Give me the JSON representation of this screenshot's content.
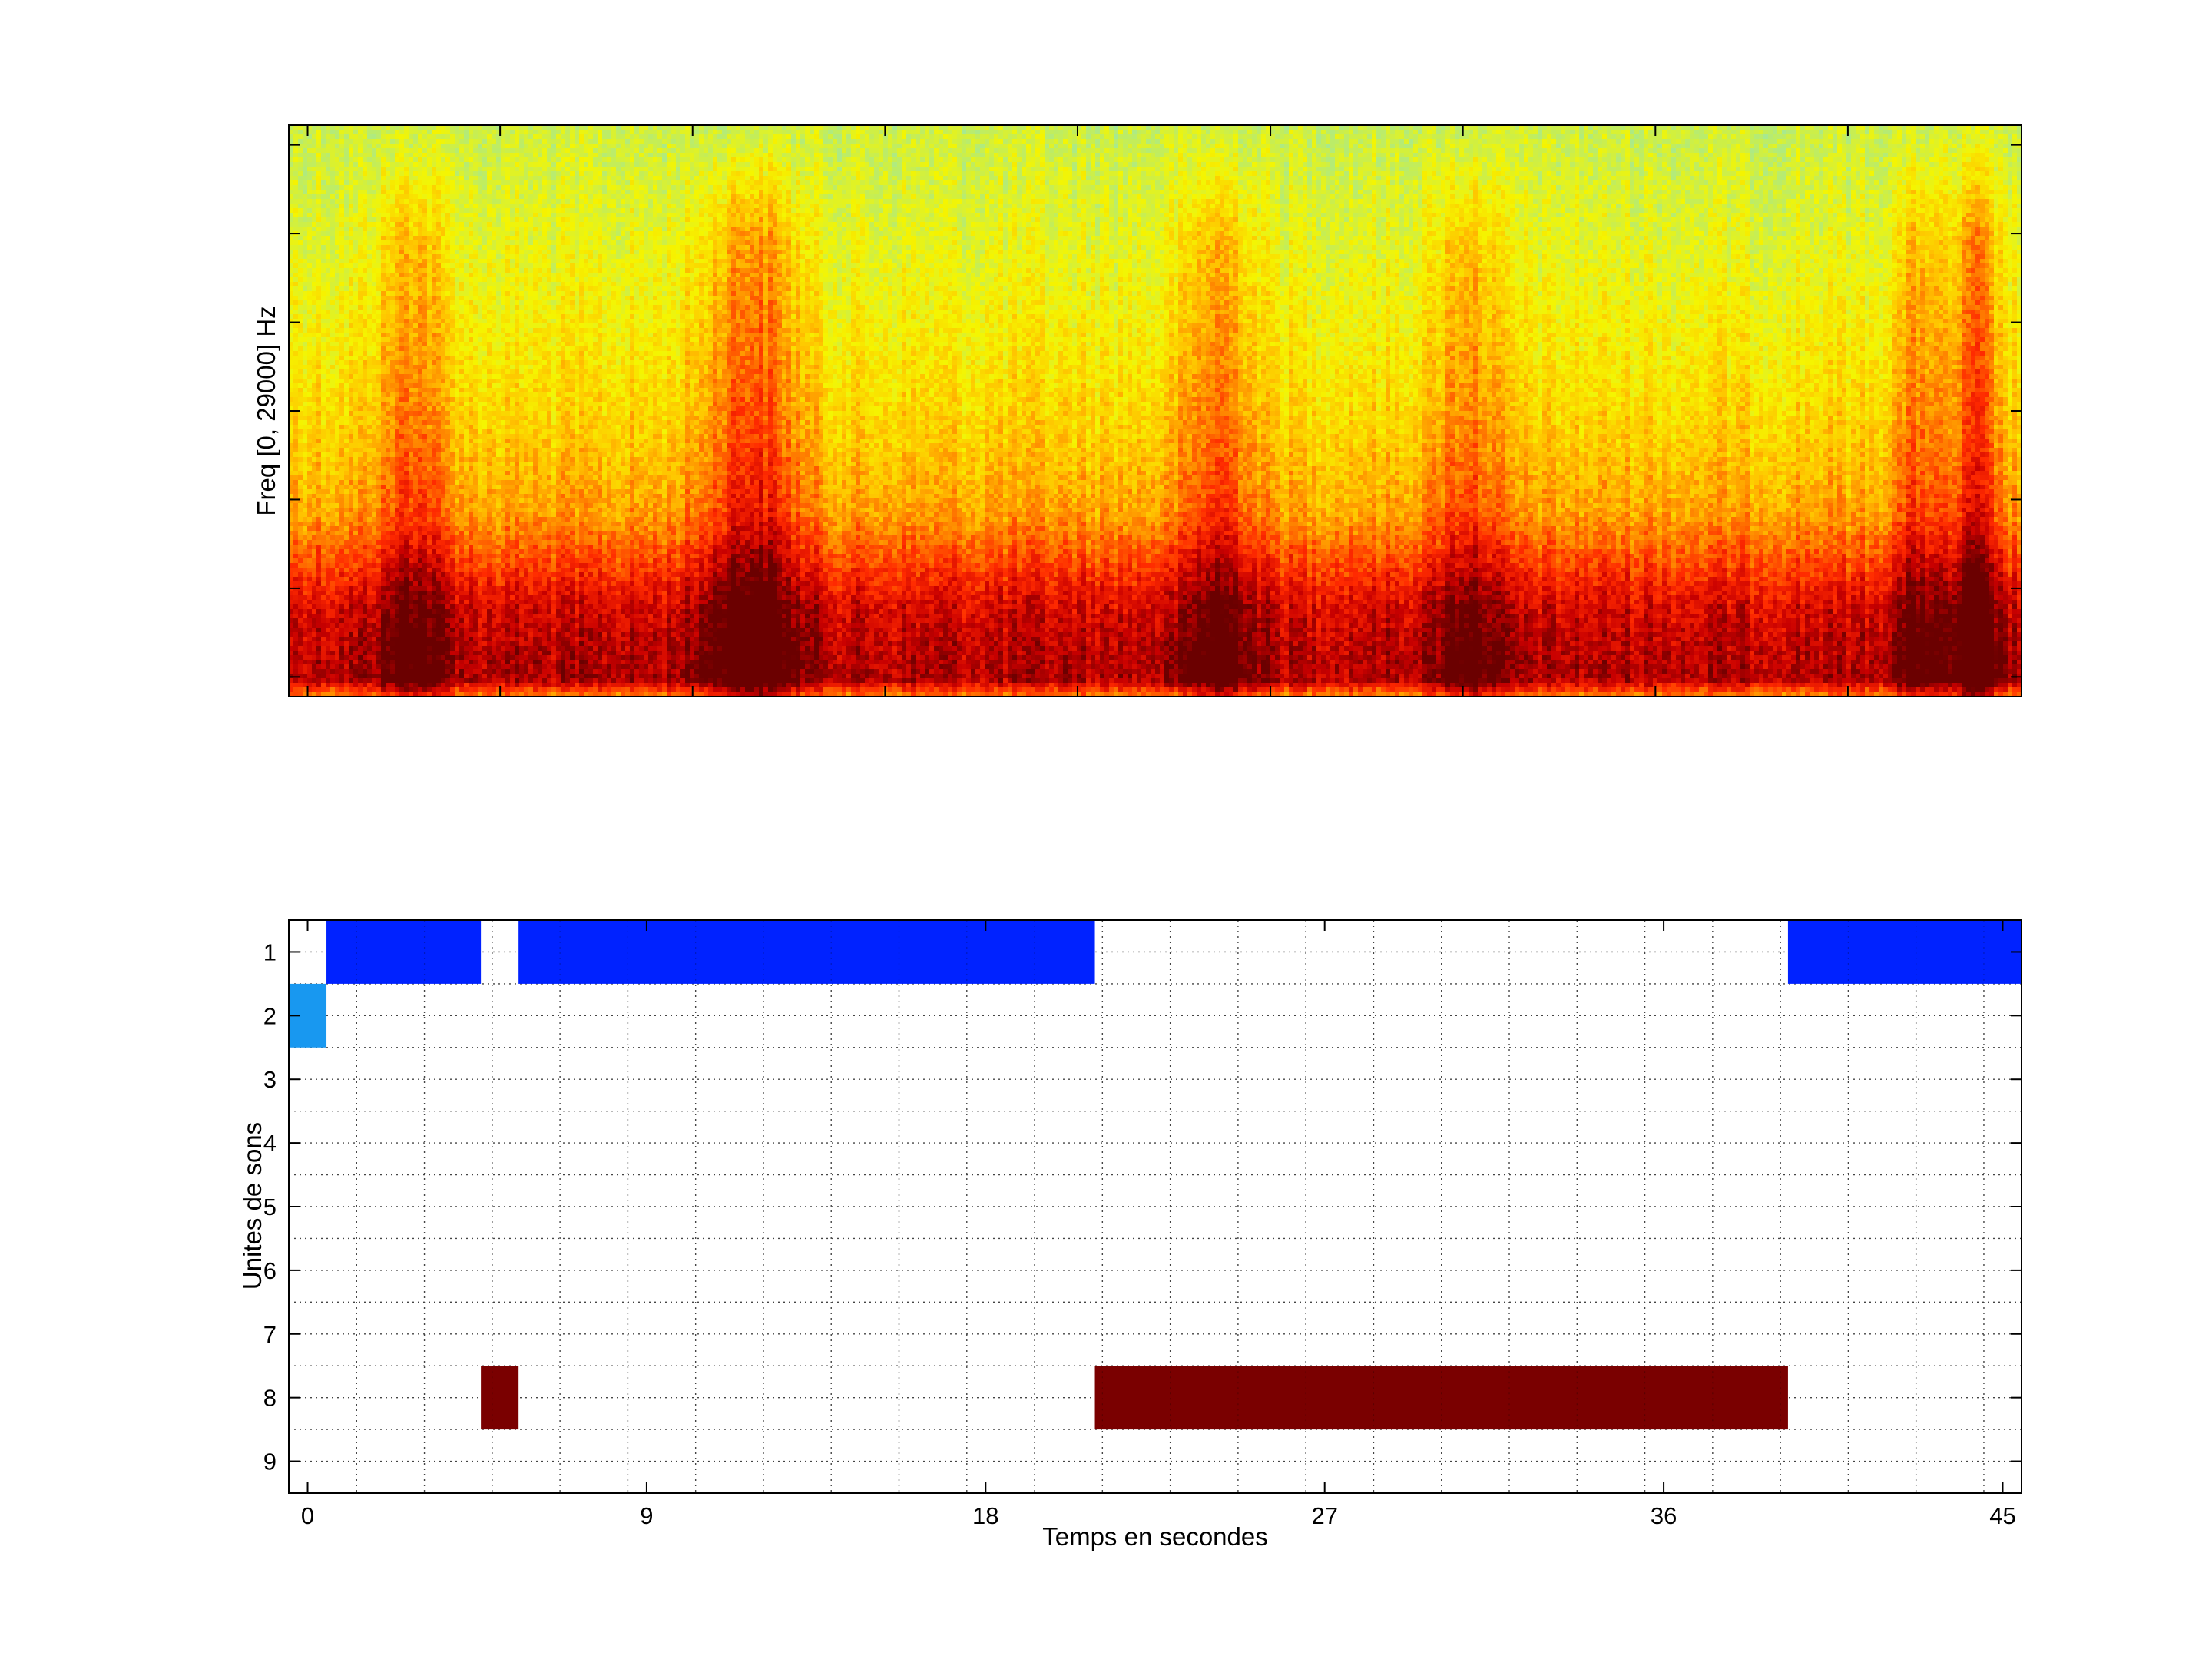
{
  "figure": {
    "background": "#ffffff"
  },
  "chart_data": [
    {
      "type": "heatmap",
      "title": "",
      "xlabel": "",
      "ylabel": "Freq [0, 29000] Hz",
      "xlim": [
        -0.5,
        45.5
      ],
      "ylim": [
        0,
        29000
      ],
      "x_ticks": [
        0,
        5.11,
        10.22,
        15.33,
        20.44,
        25.56,
        30.67,
        35.78,
        40.89
      ],
      "y_ticks": [
        1000,
        5500,
        10000,
        14500,
        19000,
        23500,
        28000
      ],
      "grid": false,
      "colormap": "hot",
      "colormap_stops": [
        "#6b0000",
        "#c80000",
        "#ff2a00",
        "#ff7a00",
        "#ffc400",
        "#f5f500",
        "#c8ee50",
        "#9ee8a0"
      ],
      "energy_profile": {
        "freq_fraction": [
          0.0,
          0.03,
          0.08,
          0.16,
          0.22,
          0.32,
          0.45,
          0.6,
          0.78,
          1.0
        ],
        "level": [
          0.45,
          0.1,
          0.12,
          0.18,
          0.3,
          0.5,
          0.6,
          0.68,
          0.76,
          0.84
        ]
      },
      "loud_regions": [
        {
          "t": 2.8,
          "width": 0.9,
          "strength": 0.22
        },
        {
          "t": 11.8,
          "width": 1.3,
          "strength": 0.3
        },
        {
          "t": 24.2,
          "width": 1.0,
          "strength": 0.22
        },
        {
          "t": 30.8,
          "width": 0.9,
          "strength": 0.2
        },
        {
          "t": 42.8,
          "width": 0.7,
          "strength": 0.2
        },
        {
          "t": 44.3,
          "width": 0.6,
          "strength": 0.3
        }
      ]
    },
    {
      "type": "heatmap",
      "title": "",
      "xlabel": "Temps en secondes",
      "ylabel": "Unites de sons",
      "xlim": [
        -0.5,
        45.5
      ],
      "ylim": [
        0.5,
        9.5
      ],
      "x_ticks": [
        0,
        9,
        18,
        27,
        36,
        45
      ],
      "y_ticks": [
        1,
        2,
        3,
        4,
        5,
        6,
        7,
        8,
        9
      ],
      "grid": true,
      "grid_x_step": 1.8,
      "grid_y_step": 0.5,
      "segments": [
        {
          "unit": 1,
          "start": 0.5,
          "end": 4.6,
          "color": "#0022ff"
        },
        {
          "unit": 1,
          "start": 5.6,
          "end": 20.9,
          "color": "#0022ff"
        },
        {
          "unit": 1,
          "start": 39.3,
          "end": 45.5,
          "color": "#0022ff"
        },
        {
          "unit": 2,
          "start": -0.5,
          "end": 0.5,
          "color": "#1898f0"
        },
        {
          "unit": 8,
          "start": 4.6,
          "end": 5.6,
          "color": "#7a0000"
        },
        {
          "unit": 8,
          "start": 20.9,
          "end": 39.3,
          "color": "#7a0000"
        }
      ]
    }
  ]
}
